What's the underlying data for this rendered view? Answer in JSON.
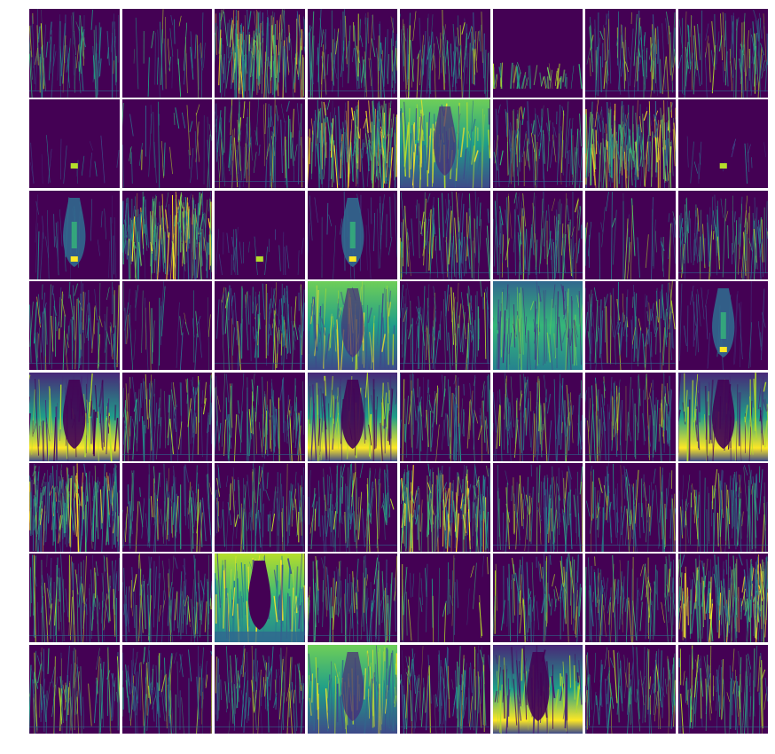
{
  "grid": {
    "rows": 8,
    "cols": 8,
    "colormap": [
      "#440154",
      "#482878",
      "#3e4a89",
      "#31688e",
      "#26828e",
      "#1f9e89",
      "#35b779",
      "#6ece58",
      "#b5de2b",
      "#fde725"
    ],
    "background": "#440154",
    "panel_styles": [
      "edges",
      "sparse",
      "dense",
      "edges",
      "edges",
      "bottom-bright",
      "edges",
      "edges",
      "tiger-spot",
      "sparse",
      "edges",
      "dense",
      "bright-top",
      "edges",
      "dense",
      "tiger-spot",
      "tiger",
      "dense",
      "small-spot",
      "tiger",
      "edges",
      "edges",
      "sparse",
      "edges",
      "edges",
      "sparse",
      "edges",
      "bright-top",
      "edges",
      "bright-mid",
      "edges",
      "tiger",
      "bright-bottom",
      "edges",
      "edges",
      "bright-bottom",
      "edges",
      "edges",
      "edges",
      "bright-bottom",
      "dense",
      "edges",
      "edges",
      "edges",
      "dense",
      "edges",
      "edges",
      "edges",
      "edges",
      "edges",
      "bright-full",
      "edges",
      "sparse",
      "edges",
      "edges",
      "dense",
      "edges",
      "edges",
      "edges",
      "bright-top",
      "edges",
      "bright-bottom",
      "edges",
      "edges"
    ]
  }
}
